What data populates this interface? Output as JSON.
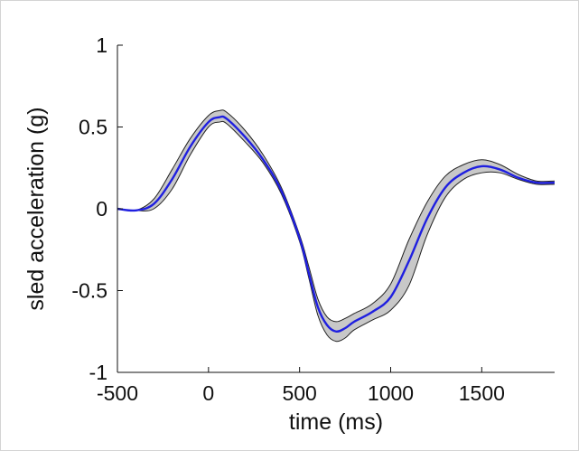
{
  "chart_data": {
    "type": "line",
    "title": "",
    "xlabel": "time (ms)",
    "ylabel": "sled acceleration (g)",
    "xlim": [
      -500,
      1900
    ],
    "ylim": [
      -1,
      1
    ],
    "xticks": [
      -500,
      0,
      500,
      1000,
      1500
    ],
    "xtick_labels": [
      "-500",
      "0",
      "500",
      "1000",
      "1500"
    ],
    "yticks": [
      -1,
      -0.5,
      0,
      0.5,
      1
    ],
    "ytick_labels": [
      "-1",
      "-0.5",
      "0",
      "0.5",
      "1"
    ],
    "grid": false,
    "legend": "none",
    "colors": {
      "mean_line": "#1f1fe0",
      "band_fill": "#c8c8c8",
      "band_edge": "#222222",
      "axis": "#111111"
    },
    "series": [
      {
        "x": [
          -500,
          -400,
          -300,
          -200,
          -100,
          0,
          60,
          100,
          200,
          300,
          400,
          500,
          550,
          600,
          650,
          700,
          750,
          800,
          900,
          1000,
          1100,
          1200,
          1300,
          1400,
          1500,
          1600,
          1700,
          1800,
          1900
        ],
        "y": [
          0.0,
          -0.01,
          0.03,
          0.18,
          0.38,
          0.53,
          0.56,
          0.55,
          0.44,
          0.3,
          0.11,
          -0.18,
          -0.39,
          -0.6,
          -0.71,
          -0.75,
          -0.73,
          -0.69,
          -0.63,
          -0.54,
          -0.32,
          -0.06,
          0.13,
          0.22,
          0.26,
          0.24,
          0.19,
          0.16,
          0.16
        ],
        "lower": [
          0.0,
          -0.01,
          0.0,
          0.12,
          0.33,
          0.5,
          0.53,
          0.52,
          0.41,
          0.28,
          0.09,
          -0.2,
          -0.42,
          -0.65,
          -0.77,
          -0.81,
          -0.79,
          -0.74,
          -0.68,
          -0.62,
          -0.47,
          -0.16,
          0.07,
          0.18,
          0.22,
          0.22,
          0.18,
          0.15,
          0.15
        ],
        "upper": [
          0.0,
          -0.01,
          0.06,
          0.24,
          0.43,
          0.57,
          0.6,
          0.59,
          0.48,
          0.33,
          0.13,
          -0.16,
          -0.35,
          -0.55,
          -0.66,
          -0.69,
          -0.67,
          -0.64,
          -0.58,
          -0.46,
          -0.19,
          0.04,
          0.2,
          0.27,
          0.3,
          0.27,
          0.21,
          0.17,
          0.17
        ]
      }
    ]
  }
}
